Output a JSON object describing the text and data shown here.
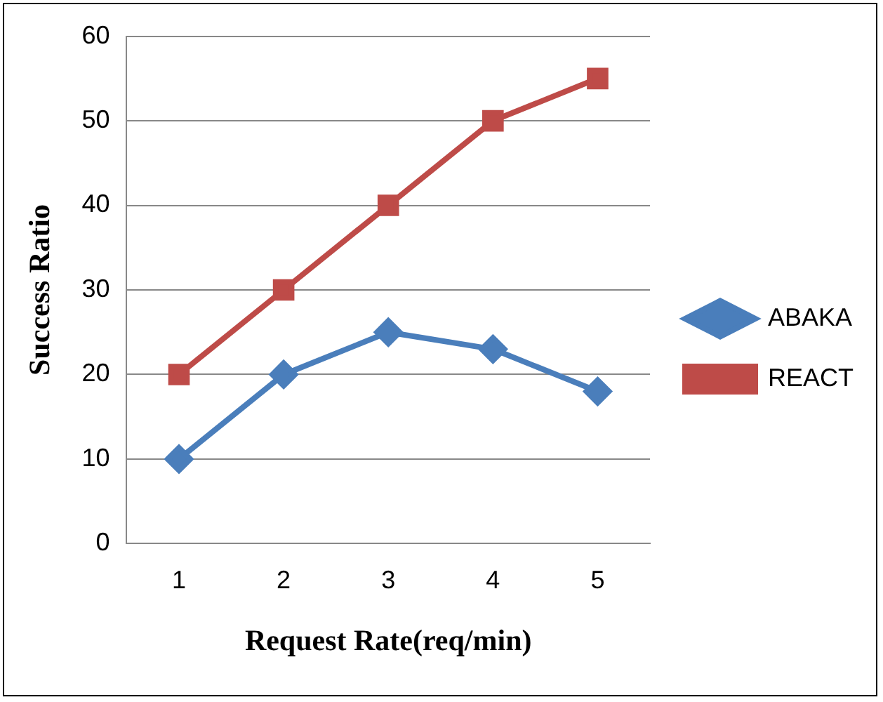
{
  "chart_data": {
    "type": "line",
    "xlabel": "Request Rate(req/min)",
    "ylabel": "Success Ratio",
    "categories": [
      "1",
      "2",
      "3",
      "4",
      "5"
    ],
    "series": [
      {
        "name": "ABAKA",
        "color": "#4a7ebb",
        "marker": "diamond",
        "values": [
          10,
          20,
          25,
          23,
          18
        ]
      },
      {
        "name": "REACT",
        "color": "#be4b48",
        "marker": "square",
        "values": [
          20,
          30,
          40,
          50,
          55
        ]
      }
    ],
    "ylim": [
      0,
      60
    ],
    "yticks": [
      0,
      10,
      20,
      30,
      40,
      50,
      60
    ],
    "grid": "y",
    "legend": "right",
    "line_style": "solid"
  }
}
